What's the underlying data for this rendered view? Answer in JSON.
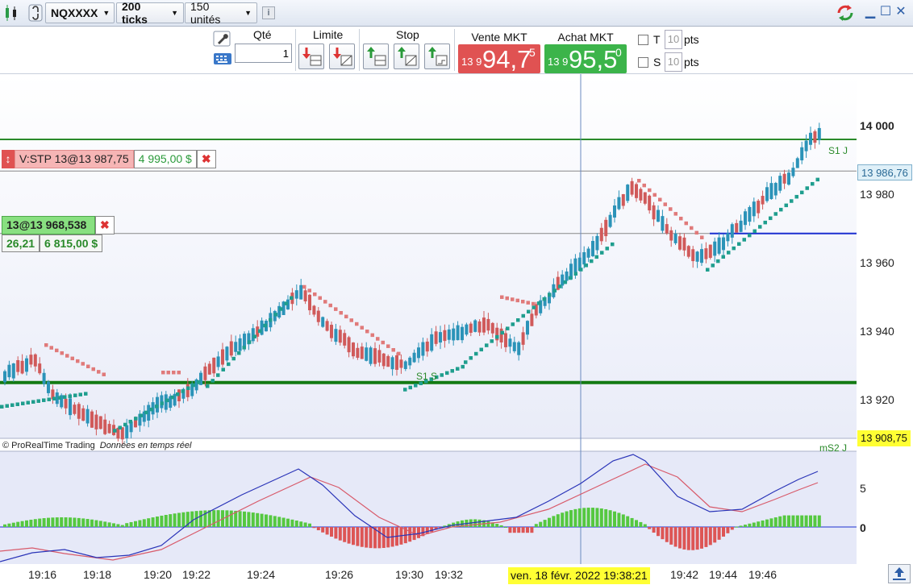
{
  "toolbar": {
    "symbol": "NQXXXX",
    "ticks": "200 ticks",
    "units": "150 unités",
    "info_icon": "info-icon"
  },
  "order": {
    "qty_label": "Qté",
    "qty_value": "1",
    "limit_label": "Limite",
    "stop_label": "Stop",
    "sell_label": "Vente MKT",
    "sell_small": "13 9",
    "sell_big": "94,7",
    "sell_sup": "5",
    "buy_label": "Achat MKT",
    "buy_small": "13 9",
    "buy_big": "95,5",
    "buy_sup": "0",
    "t_label": "T",
    "t_value": "10",
    "s_label": "S",
    "s_value": "10",
    "pts": "pts"
  },
  "chart": {
    "stop_order_text": "V:STP 13@13 987,75",
    "stop_order_amount": "4 995,00 $",
    "position_text": "13@13 968,538",
    "position_pts": "26,21",
    "position_amount": "6 815,00 $",
    "s1j": "S1 J",
    "s1s": "S1 S",
    "ms2j": "mS2 J",
    "copyright": "© ProRealTime Trading",
    "realtime": "Données en temps réel",
    "cursor_date": "ven. 18 févr. 2022 19:38:21"
  },
  "price_axis": {
    "labels": [
      "14 000",
      "13 980",
      "13 960",
      "13 940",
      "13 920"
    ],
    "current_price": "13 986,76",
    "low_price": "13 908,75"
  },
  "indicator_axis": {
    "labels": [
      "5",
      "0"
    ]
  },
  "time_axis": {
    "labels": [
      "19:16",
      "19:18",
      "19:20",
      "19:22",
      "19:24",
      "19:26",
      "19:30",
      "19:32",
      "19:42",
      "19:44",
      "19:46"
    ]
  },
  "colors": {
    "bull": "#2b93b8",
    "bear": "#d05a5a",
    "sar_bull": "#1f9e8e",
    "sar_bear": "#e07a7a",
    "sell": "#e05252",
    "buy": "#3cb44a"
  }
}
